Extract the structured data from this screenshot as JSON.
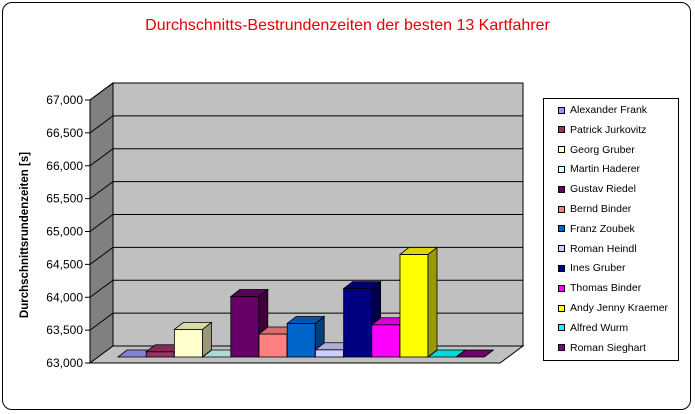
{
  "chart_data": {
    "type": "bar",
    "title": "Durchschnitts-Bestrundenzeiten der besten 13 Kartfahrer",
    "ylabel": "Durchschnittsrundenzeiten [s]",
    "xlabel": "",
    "ylim": [
      63000,
      67000
    ],
    "y_ticks": [
      "63,000",
      "63,500",
      "64,000",
      "64,500",
      "65,000",
      "65,500",
      "66,000",
      "66,500",
      "67,000"
    ],
    "y_tick_values": [
      63000,
      63500,
      64000,
      64500,
      65000,
      65500,
      66000,
      66500,
      67000
    ],
    "grid": true,
    "legend_position": "right",
    "series": [
      {
        "name": "Alexander Frank",
        "value": 63000,
        "color": "#9999ff"
      },
      {
        "name": "Patrick Jurkovitz",
        "value": 63080,
        "color": "#993366"
      },
      {
        "name": "Georg Gruber",
        "value": 63420,
        "color": "#ffffcc"
      },
      {
        "name": "Martin Haderer",
        "value": 63000,
        "color": "#ccffff"
      },
      {
        "name": "Gustav Riedel",
        "value": 63920,
        "color": "#660066"
      },
      {
        "name": "Bernd Binder",
        "value": 63350,
        "color": "#ff8080"
      },
      {
        "name": "Franz Zoubek",
        "value": 63510,
        "color": "#0066cc"
      },
      {
        "name": "Roman Heindl",
        "value": 63110,
        "color": "#ccccff"
      },
      {
        "name": "Ines Gruber",
        "value": 64040,
        "color": "#000080"
      },
      {
        "name": "Thomas Binder",
        "value": 63490,
        "color": "#ff00ff"
      },
      {
        "name": "Andy Jenny Kraemer",
        "value": 64560,
        "color": "#ffff00"
      },
      {
        "name": "Alfred Wurm",
        "value": 63000,
        "color": "#00ffff"
      },
      {
        "name": "Roman Sieghart",
        "value": 63000,
        "color": "#800080"
      }
    ]
  }
}
